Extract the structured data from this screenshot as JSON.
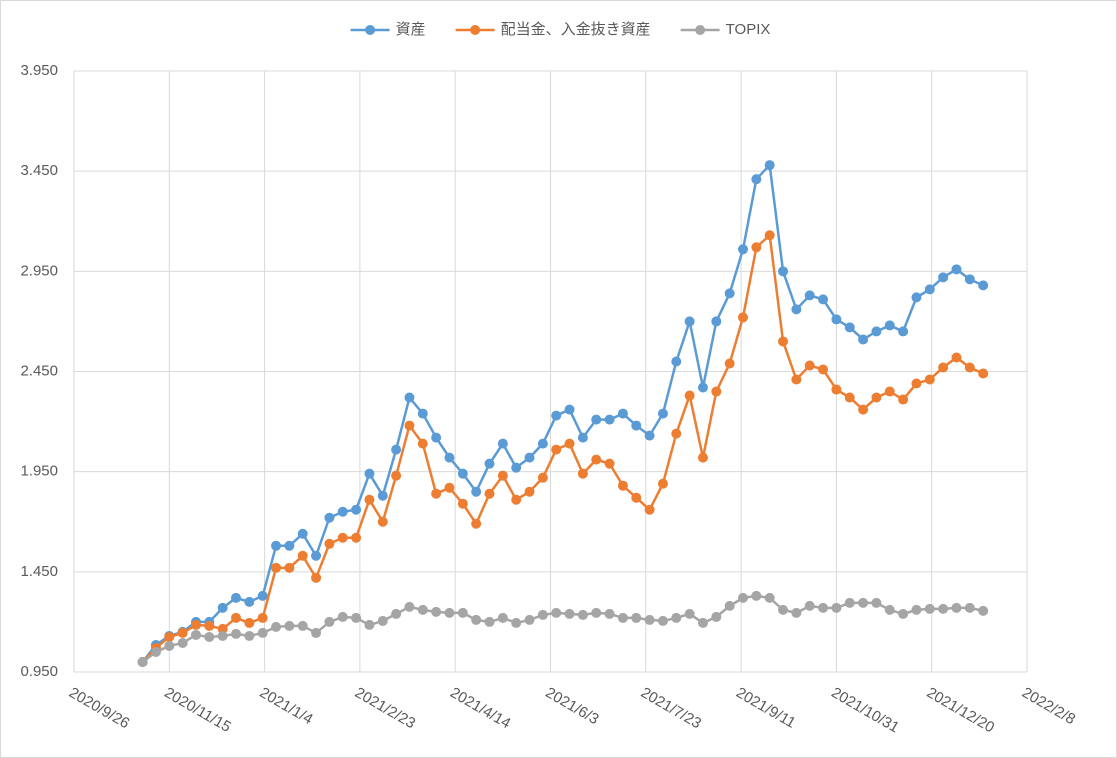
{
  "chart_data": {
    "type": "line",
    "x": [
      "2020/11/1",
      "2020/11/8",
      "2020/11/15",
      "2020/11/22",
      "2020/11/29",
      "2020/12/6",
      "2020/12/13",
      "2020/12/20",
      "2020/12/27",
      "2021/1/3",
      "2021/1/10",
      "2021/1/17",
      "2021/1/24",
      "2021/1/31",
      "2021/2/7",
      "2021/2/14",
      "2021/2/21",
      "2021/2/28",
      "2021/3/7",
      "2021/3/14",
      "2021/3/21",
      "2021/3/28",
      "2021/4/4",
      "2021/4/11",
      "2021/4/18",
      "2021/4/25",
      "2021/5/2",
      "2021/5/9",
      "2021/5/16",
      "2021/5/23",
      "2021/5/30",
      "2021/6/6",
      "2021/6/13",
      "2021/6/20",
      "2021/6/27",
      "2021/7/4",
      "2021/7/11",
      "2021/7/18",
      "2021/7/25",
      "2021/8/1",
      "2021/8/8",
      "2021/8/15",
      "2021/8/22",
      "2021/8/29",
      "2021/9/5",
      "2021/9/12",
      "2021/9/19",
      "2021/9/26",
      "2021/10/3",
      "2021/10/10",
      "2021/10/17",
      "2021/10/24",
      "2021/10/31",
      "2021/11/7",
      "2021/11/14",
      "2021/11/21",
      "2021/11/28",
      "2021/12/5",
      "2021/12/12",
      "2021/12/19",
      "2021/12/26",
      "2022/1/2",
      "2022/1/9",
      "2022/1/16"
    ],
    "series": [
      {
        "name": "資産",
        "color": "#5b9bd5",
        "values": [
          1.0,
          1.085,
          1.13,
          1.15,
          1.2,
          1.2,
          1.27,
          1.32,
          1.3,
          1.33,
          1.58,
          1.58,
          1.64,
          1.53,
          1.72,
          1.75,
          1.76,
          1.94,
          1.83,
          2.06,
          2.32,
          2.24,
          2.12,
          2.02,
          1.94,
          1.85,
          1.99,
          2.09,
          1.97,
          2.02,
          2.09,
          2.23,
          2.26,
          2.12,
          2.21,
          2.21,
          2.24,
          2.18,
          2.13,
          2.24,
          2.5,
          2.7,
          2.37,
          2.7,
          2.84,
          3.06,
          3.41,
          3.48,
          2.95,
          2.76,
          2.83,
          2.81,
          2.71,
          2.67,
          2.61,
          2.65,
          2.68,
          2.65,
          2.82,
          2.86,
          2.92,
          2.96,
          2.91,
          2.88
        ]
      },
      {
        "name": "配当金、入金抜き資産",
        "color": "#ed7d31",
        "values": [
          1.0,
          1.07,
          1.125,
          1.145,
          1.185,
          1.18,
          1.165,
          1.22,
          1.195,
          1.22,
          1.47,
          1.47,
          1.53,
          1.42,
          1.59,
          1.62,
          1.62,
          1.81,
          1.7,
          1.93,
          2.18,
          2.09,
          1.84,
          1.87,
          1.79,
          1.69,
          1.84,
          1.93,
          1.81,
          1.85,
          1.92,
          2.06,
          2.09,
          1.94,
          2.01,
          1.99,
          1.88,
          1.82,
          1.76,
          1.89,
          2.14,
          2.33,
          2.02,
          2.35,
          2.49,
          2.72,
          3.07,
          3.13,
          2.6,
          2.41,
          2.48,
          2.46,
          2.36,
          2.32,
          2.26,
          2.32,
          2.35,
          2.31,
          2.39,
          2.41,
          2.47,
          2.52,
          2.47,
          2.44
        ]
      },
      {
        "name": "TOPIX",
        "color": "#a5a5a5",
        "values": [
          1.0,
          1.05,
          1.08,
          1.095,
          1.135,
          1.125,
          1.13,
          1.14,
          1.13,
          1.145,
          1.175,
          1.18,
          1.18,
          1.145,
          1.2,
          1.225,
          1.22,
          1.185,
          1.205,
          1.24,
          1.275,
          1.26,
          1.25,
          1.245,
          1.245,
          1.21,
          1.2,
          1.22,
          1.195,
          1.21,
          1.235,
          1.245,
          1.24,
          1.235,
          1.245,
          1.24,
          1.22,
          1.22,
          1.21,
          1.205,
          1.22,
          1.24,
          1.195,
          1.225,
          1.28,
          1.32,
          1.33,
          1.32,
          1.26,
          1.245,
          1.28,
          1.27,
          1.27,
          1.295,
          1.295,
          1.295,
          1.26,
          1.24,
          1.26,
          1.265,
          1.265,
          1.27,
          1.27,
          1.255
        ]
      }
    ],
    "xlim": [
      "2020/9/26",
      "2022/2/8"
    ],
    "xticks": [
      "2020/9/26",
      "2020/11/15",
      "2021/1/4",
      "2021/2/23",
      "2021/4/14",
      "2021/6/3",
      "2021/7/23",
      "2021/9/11",
      "2021/10/31",
      "2021/12/20",
      "2022/2/8"
    ],
    "ylim": [
      0.95,
      3.95
    ],
    "yticks": [
      {
        "value": 0.95,
        "label": "0.950"
      },
      {
        "value": 1.45,
        "label": "1.450"
      },
      {
        "value": 1.95,
        "label": "1.950"
      },
      {
        "value": 2.45,
        "label": "2.450"
      },
      {
        "value": 2.95,
        "label": "2.950"
      },
      {
        "value": 3.45,
        "label": "3.450"
      },
      {
        "value": 3.95,
        "label": "3.950"
      }
    ],
    "grid": true,
    "legend": "top"
  }
}
